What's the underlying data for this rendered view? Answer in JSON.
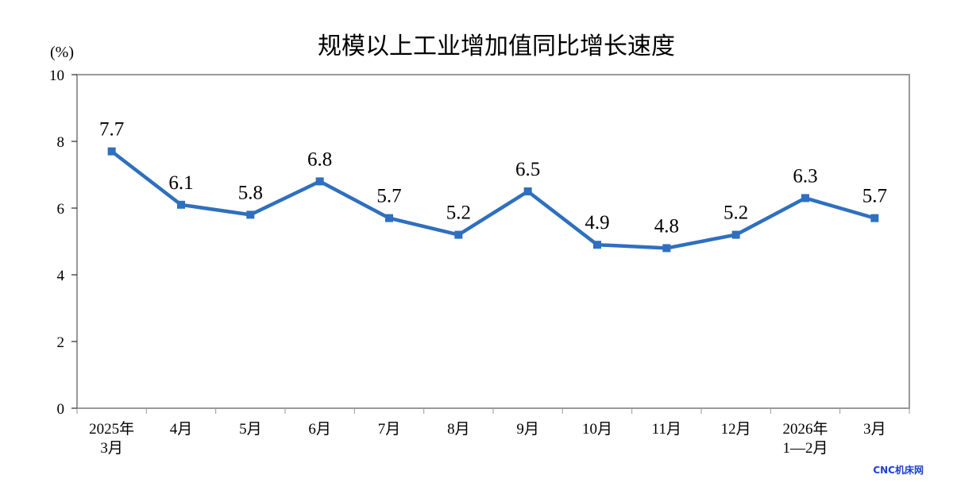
{
  "watermark": "CNC机床网",
  "chart_data": {
    "type": "line",
    "title": "规模以上工业增加值同比增长速度",
    "y_unit": "(%)",
    "ylim": [
      0,
      10
    ],
    "yticks": [
      0,
      2,
      4,
      6,
      8,
      10
    ],
    "categories": [
      [
        "2025年",
        "3月"
      ],
      [
        "4月"
      ],
      [
        "5月"
      ],
      [
        "6月"
      ],
      [
        "7月"
      ],
      [
        "8月"
      ],
      [
        "9月"
      ],
      [
        "10月"
      ],
      [
        "11月"
      ],
      [
        "12月"
      ],
      [
        "2026年",
        "1—2月"
      ],
      [
        "3月"
      ]
    ],
    "values": [
      7.7,
      6.1,
      5.8,
      6.8,
      5.7,
      5.2,
      6.5,
      4.9,
      4.8,
      5.2,
      6.3,
      5.7
    ],
    "data_labels": [
      "7.7",
      "6.1",
      "5.8",
      "6.8",
      "5.7",
      "5.2",
      "6.5",
      "4.9",
      "4.8",
      "5.2",
      "6.3",
      "5.7"
    ],
    "line_color": "#2e6fbf",
    "grid": false,
    "legend": "none"
  }
}
